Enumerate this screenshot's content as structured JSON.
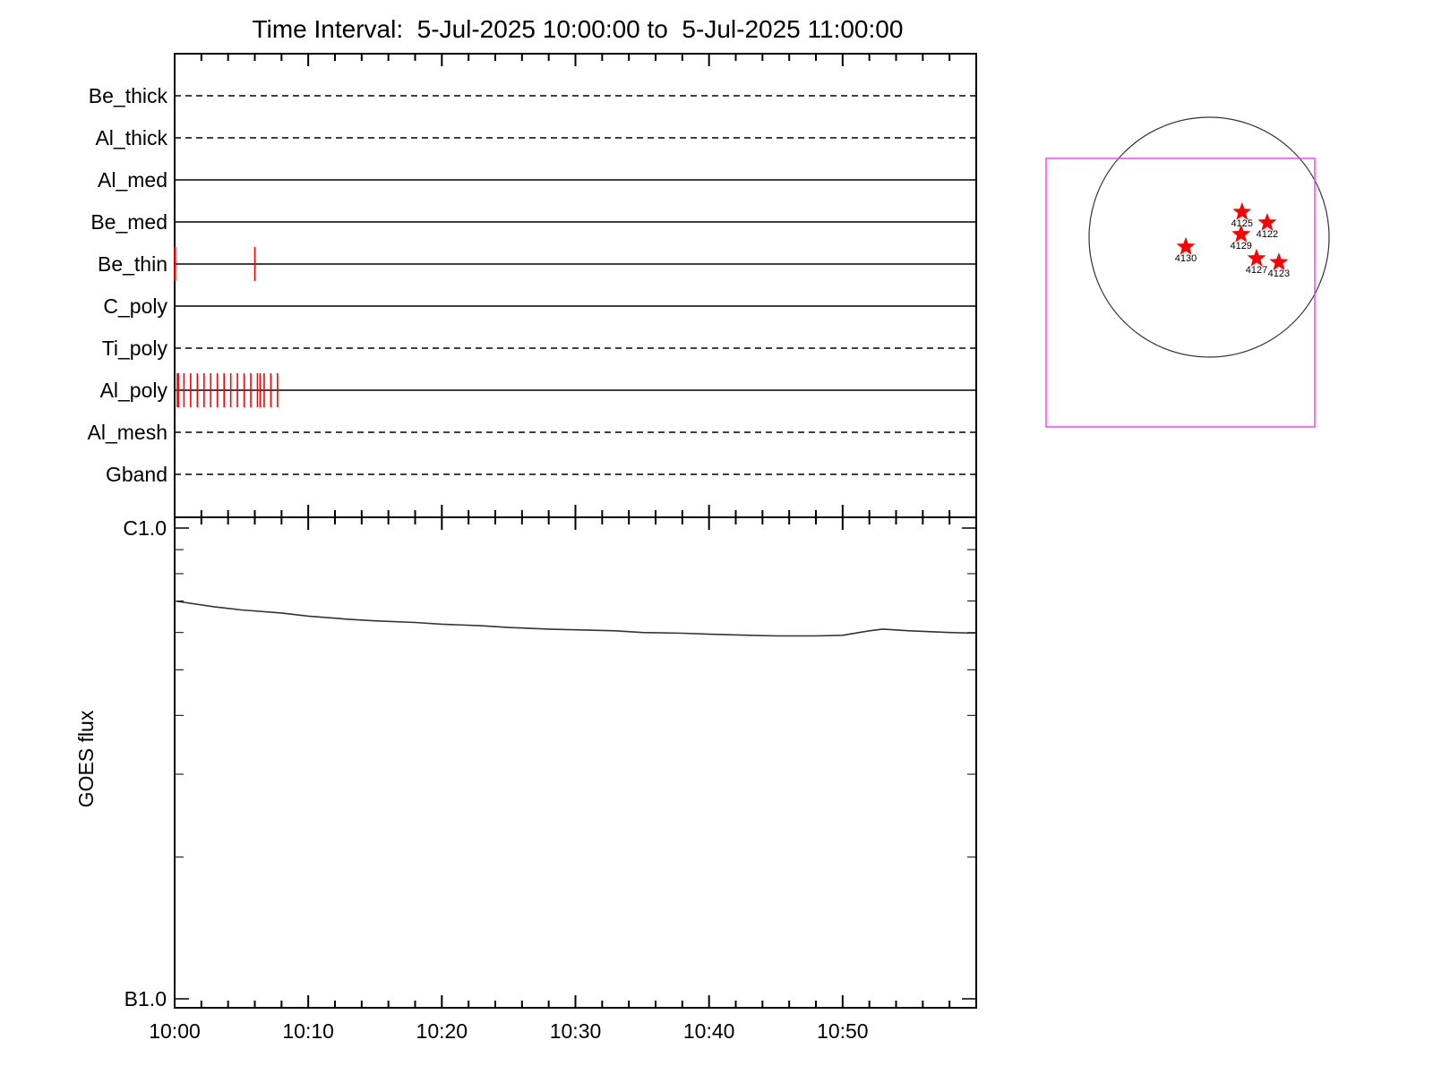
{
  "title": "Time Interval:  5-Jul-2025 10:00:00 to  5-Jul-2025 11:00:00",
  "colors": {
    "axis": "#000000",
    "event": "#ff0000",
    "fov_box": "#ff33ff",
    "flux_line": "#333333",
    "star": "#ff0000"
  },
  "chart_data": [
    {
      "type": "timeline",
      "name": "filter-timeline",
      "x_range_minutes": [
        0,
        60
      ],
      "rows": [
        {
          "label": "Be_thick",
          "style": "dashed",
          "events": []
        },
        {
          "label": "Al_thick",
          "style": "dashed",
          "events": []
        },
        {
          "label": "Al_med",
          "style": "solid",
          "events": []
        },
        {
          "label": "Be_med",
          "style": "solid",
          "events": []
        },
        {
          "label": "Be_thin",
          "style": "solid",
          "events": [
            0.0,
            0.05,
            6.0
          ]
        },
        {
          "label": "C_poly",
          "style": "solid",
          "events": []
        },
        {
          "label": "Ti_poly",
          "style": "dashed",
          "events": []
        },
        {
          "label": "Al_poly",
          "style": "solid",
          "events": [
            0.2,
            0.3,
            0.7,
            1.2,
            1.7,
            2.2,
            2.7,
            3.2,
            3.7,
            4.2,
            4.7,
            5.2,
            5.7,
            6.2,
            6.4,
            6.7,
            7.2,
            7.7
          ]
        },
        {
          "label": "Al_mesh",
          "style": "dashed",
          "events": []
        },
        {
          "label": "Gband",
          "style": "dashed",
          "events": []
        }
      ]
    },
    {
      "type": "line",
      "name": "goes-flux",
      "ylabel": "GOES flux",
      "y_scale": "log",
      "y_tick_labels": [
        {
          "label": "C1.0",
          "value": 1e-06
        },
        {
          "label": "B1.0",
          "value": 1e-07
        }
      ],
      "x_tick_labels": [
        "10:00",
        "10:10",
        "10:20",
        "10:30",
        "10:40",
        "10:50"
      ],
      "x_range_minutes": [
        0,
        60
      ],
      "series": [
        {
          "x": [
            0,
            3,
            5,
            8,
            10,
            13,
            15,
            18,
            20,
            23,
            25,
            28,
            30,
            33,
            35,
            38,
            40,
            43,
            45,
            48,
            50,
            52,
            53,
            55,
            58,
            60
          ],
          "y": [
            7e-07,
            6.8e-07,
            6.7e-07,
            6.6e-07,
            6.5e-07,
            6.4e-07,
            6.35e-07,
            6.3e-07,
            6.25e-07,
            6.2e-07,
            6.15e-07,
            6.1e-07,
            6.08e-07,
            6.05e-07,
            6e-07,
            5.98e-07,
            5.95e-07,
            5.92e-07,
            5.9e-07,
            5.9e-07,
            5.92e-07,
            6.05e-07,
            6.1e-07,
            6.05e-07,
            6e-07,
            5.98e-07
          ]
        }
      ]
    },
    {
      "type": "scatter",
      "name": "active-regions",
      "points": [
        {
          "label": "4125",
          "x": 170,
          "y": 130
        },
        {
          "label": "4122",
          "x": 300,
          "y": 75
        },
        {
          "label": "4129",
          "x": 165,
          "y": 15
        },
        {
          "label": "4130",
          "x": -120,
          "y": -50
        },
        {
          "label": "4127",
          "x": 245,
          "y": -110
        },
        {
          "label": "4123",
          "x": 360,
          "y": -130
        }
      ]
    }
  ]
}
